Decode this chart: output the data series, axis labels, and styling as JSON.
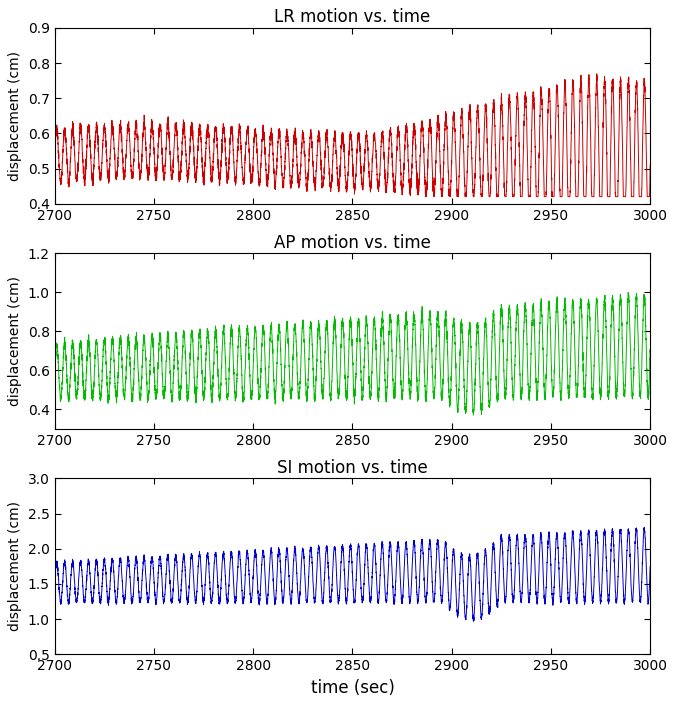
{
  "title1": "LR motion vs. time",
  "title2": "AP motion vs. time",
  "title3": "SI motion vs. time",
  "xlabel": "time (sec)",
  "ylabel": "displacement (cm)",
  "xmin": 2700,
  "xmax": 3000,
  "lr_ylim": [
    0.4,
    0.9
  ],
  "lr_yticks": [
    0.4,
    0.5,
    0.6,
    0.7,
    0.8,
    0.9
  ],
  "ap_ylim": [
    0.3,
    1.2
  ],
  "ap_yticks": [
    0.4,
    0.6,
    0.8,
    1.0,
    1.2
  ],
  "si_ylim": [
    0.5,
    3.0
  ],
  "si_yticks": [
    0.5,
    1.0,
    1.5,
    2.0,
    2.5,
    3.0
  ],
  "xticks": [
    2700,
    2750,
    2800,
    2850,
    2900,
    2950,
    3000
  ],
  "color_lr": "#cc0000",
  "color_ap": "#00bb00",
  "color_si": "#0000cc",
  "linewidth": 0.7,
  "title_fontsize": 12,
  "label_fontsize": 10,
  "tick_fontsize": 10,
  "bg_color": "#ffffff"
}
